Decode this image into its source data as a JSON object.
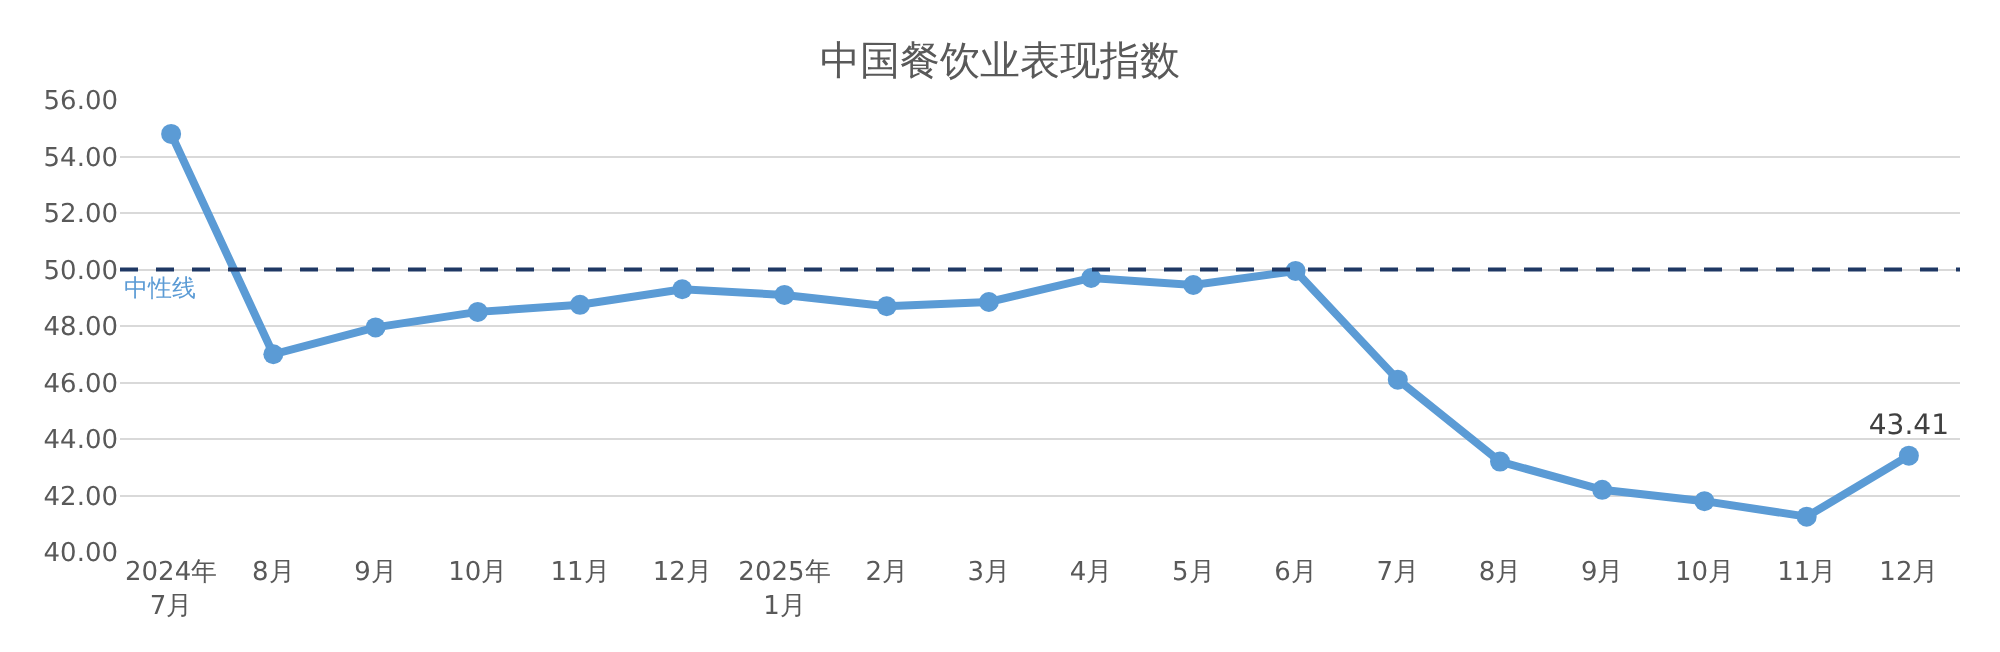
{
  "chart_data": {
    "type": "line",
    "title": "中国餐饮业表现指数",
    "categories": [
      "2024年\n7月",
      "8月",
      "9月",
      "10月",
      "11月",
      "12月",
      "2025年\n1月",
      "2月",
      "3月",
      "4月",
      "5月",
      "6月",
      "7月",
      "8月",
      "9月",
      "10月",
      "11月",
      "12月"
    ],
    "series": [
      {
        "color": "#5b9bd5",
        "values": [
          54.8,
          47.0,
          47.95,
          48.5,
          48.75,
          49.3,
          49.1,
          48.7,
          48.85,
          49.7,
          49.45,
          49.95,
          46.1,
          43.2,
          42.2,
          41.8,
          41.25,
          43.41
        ],
        "value_labels": [
          null,
          null,
          null,
          null,
          null,
          null,
          null,
          null,
          null,
          null,
          null,
          null,
          null,
          null,
          null,
          null,
          null,
          "43.41"
        ]
      }
    ],
    "ylim": [
      40,
      56
    ],
    "yticks": [
      {
        "value": 40,
        "label": "40.00"
      },
      {
        "value": 42,
        "label": "42.00"
      },
      {
        "value": 44,
        "label": "44.00"
      },
      {
        "value": 46,
        "label": "46.00"
      },
      {
        "value": 48,
        "label": "48.00"
      },
      {
        "value": 50,
        "label": "50.00"
      },
      {
        "value": 52,
        "label": "52.00"
      },
      {
        "value": 54,
        "label": "54.00"
      },
      {
        "value": 56,
        "label": "56.00"
      }
    ],
    "ref_lines": [
      {
        "axis": "y",
        "value": 50,
        "label": "中性线",
        "color": "#1f3864",
        "line_style": "dashed"
      }
    ],
    "grid": "y",
    "marker": "circle",
    "line_style": "solid",
    "legend": false
  }
}
